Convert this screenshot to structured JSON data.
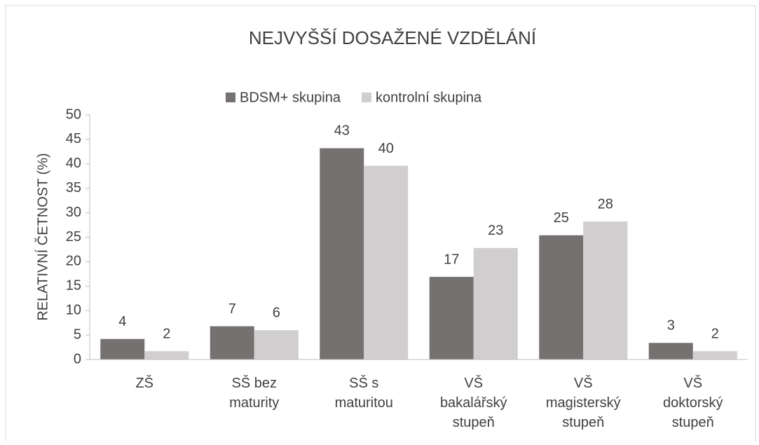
{
  "chart_data": {
    "type": "bar",
    "title": "NEJVYŠŠÍ DOSAŽENÉ VZDĚLÁNÍ",
    "y_label": "RELATIVNÍ ČETNOST (%)",
    "categories": [
      "ZŠ",
      "SŠ bez\nmaturity",
      "SŠ s\nmaturitou",
      "VŠ\nbakalářský\nstupeň",
      "VŠ\nmagisterský\nstupeň",
      "VŠ\ndoktorský\nstupeň"
    ],
    "series": [
      {
        "name": "BDSM+ skupina",
        "color": "#767171",
        "values": [
          4.2,
          6.8,
          43.2,
          16.9,
          25.4,
          3.4
        ],
        "value_labels": [
          "4",
          "7",
          "43",
          "17",
          "25",
          "3"
        ]
      },
      {
        "name": "kontrolní skupina",
        "color": "#d0cece",
        "values": [
          1.7,
          6.0,
          39.6,
          22.8,
          28.2,
          1.7
        ],
        "value_labels": [
          "2",
          "6",
          "40",
          "23",
          "28",
          "2"
        ]
      }
    ],
    "ylim": [
      0,
      50
    ],
    "yticks": [
      0,
      5,
      10,
      15,
      20,
      25,
      30,
      35,
      40,
      45,
      50
    ],
    "grid": false,
    "legend": "top"
  }
}
